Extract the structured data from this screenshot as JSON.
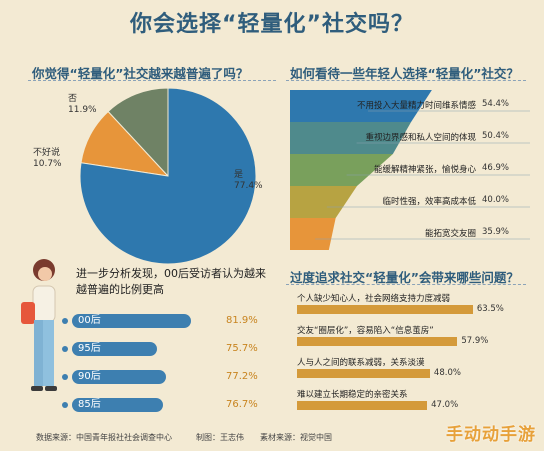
{
  "title": "你会选择“轻量化”社交吗？",
  "left_head": "你觉得“轻量化”社交越来越普遍了吗？",
  "right_head": "如何看待一些年轻人选择“轻量化”社交？",
  "mid_text": "进一步分析发现，00后受访者认为越来越普遍的比例更高",
  "bottom_right_head": "过度追求社交“轻量化”会带来哪些问题？",
  "footer": "数据来源：中国青年报社社会调查中心　　　制图：王志伟　　素材来源：视觉中国",
  "watermark": "手动动手游",
  "colors": {
    "blue": "#2e78ae",
    "green": "#6f8265",
    "orange": "#e7953a",
    "gold": "#d49a3a",
    "page": "#f3ead3"
  },
  "chart_data": [
    {
      "type": "pie",
      "labels": [
        "是",
        "否",
        "不好说"
      ],
      "values": [
        77.4,
        11.9,
        10.7
      ],
      "value_labels": [
        "77.4%",
        "11.9%",
        "10.7%"
      ],
      "colors": [
        "#2e78ae",
        "#6f8265",
        "#e7953a"
      ]
    },
    {
      "type": "bar",
      "orientation": "funnel",
      "categories": [
        "不用投入大量精力时间维系情感",
        "重视边界感和私人空间的体现",
        "能缓解精神紧张，愉悦身心",
        "临时性强，效率高成本低",
        "能拓宽交友圈"
      ],
      "values": [
        54.4,
        50.4,
        46.9,
        40.0,
        35.9
      ],
      "value_labels": [
        "54.4%",
        "50.4%",
        "46.9%",
        "40.0%",
        "35.9%"
      ]
    },
    {
      "type": "bar",
      "categories": [
        "00后",
        "95后",
        "90后",
        "85后"
      ],
      "values": [
        81.9,
        75.7,
        77.2,
        76.7
      ],
      "value_labels": [
        "81.9%",
        "75.7%",
        "77.2%",
        "76.7%"
      ]
    },
    {
      "type": "bar",
      "categories": [
        "个人缺少知心人，社会网络支持力度减弱",
        "交友“圈层化”，容易陷入“信息茧房”",
        "人与人之间的联系减弱，关系淡漠",
        "难以建立长期稳定的亲密关系"
      ],
      "values": [
        63.5,
        57.9,
        48.0,
        47.0
      ],
      "value_labels": [
        "63.5%",
        "57.9%",
        "48.0%",
        "47.0%"
      ]
    }
  ]
}
